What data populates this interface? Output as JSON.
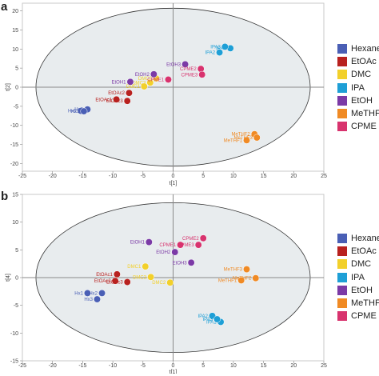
{
  "legend": [
    "Hexane",
    "EtOAc",
    "DMC",
    "IPA",
    "EtOH",
    "MeTHF",
    "CPME"
  ],
  "colors": {
    "Hexane": "#4a5fb5",
    "EtOAc": "#b8211f",
    "DMC": "#f2d02b",
    "IPA": "#1e9fd6",
    "EtOH": "#7b3aa6",
    "MeTHF": "#f08a24",
    "CPME": "#d8336e"
  },
  "chart_data": [
    {
      "type": "scatter",
      "panel": "a",
      "xlabel": "t[1]",
      "ylabel": "t[2]",
      "xlim": [
        -25,
        25
      ],
      "ylim": [
        -22,
        22
      ],
      "xticks": [
        -25,
        -20,
        -15,
        -10,
        -5,
        0,
        5,
        10,
        15,
        20,
        25
      ],
      "yticks": [
        -20,
        -15,
        -10,
        -5,
        0,
        5,
        10,
        15,
        20
      ],
      "points": [
        {
          "label": "Hx1",
          "group": "Hexane",
          "x": -15.3,
          "y": -6.2
        },
        {
          "label": "Hx2",
          "group": "Hexane",
          "x": -14.2,
          "y": -5.8
        },
        {
          "label": "Hx3",
          "group": "Hexane",
          "x": -14.8,
          "y": -6.3
        },
        {
          "label": "EtOAc1",
          "group": "EtOAc",
          "x": -9.4,
          "y": -3.2
        },
        {
          "label": "EtOAc2",
          "group": "EtOAc",
          "x": -7.3,
          "y": -1.5
        },
        {
          "label": "EtOAc3",
          "group": "EtOAc",
          "x": -7.6,
          "y": -3.6
        },
        {
          "label": "DMC1",
          "group": "DMC",
          "x": -4.8,
          "y": 0.2
        },
        {
          "label": "DMC2",
          "group": "DMC",
          "x": -2.8,
          "y": 2.3
        },
        {
          "label": "DMC3",
          "group": "DMC",
          "x": -3.8,
          "y": 1.2
        },
        {
          "label": "IPA1",
          "group": "IPA",
          "x": 9.5,
          "y": 10.2
        },
        {
          "label": "IPA2",
          "group": "IPA",
          "x": 7.7,
          "y": 9.1
        },
        {
          "label": "IPA3",
          "group": "IPA",
          "x": 8.6,
          "y": 10.6
        },
        {
          "label": "EtOH1",
          "group": "EtOH",
          "x": -7.1,
          "y": 1.4
        },
        {
          "label": "EtOH2",
          "group": "EtOH",
          "x": -3.2,
          "y": 3.4
        },
        {
          "label": "EtOH3",
          "group": "EtOH",
          "x": 2.0,
          "y": 6.0
        },
        {
          "label": "MeTHF1",
          "group": "MeTHF",
          "x": 12.2,
          "y": -13.9
        },
        {
          "label": "MeTHF2",
          "group": "MeTHF",
          "x": 13.5,
          "y": -12.3
        },
        {
          "label": "MeTHF3",
          "group": "MeTHF",
          "x": 13.9,
          "y": -13.2
        },
        {
          "label": "CPME1",
          "group": "CPME",
          "x": -0.8,
          "y": 2.0
        },
        {
          "label": "CPME2",
          "group": "CPME",
          "x": 4.6,
          "y": 4.8
        },
        {
          "label": "CPME3",
          "group": "CPME",
          "x": 4.8,
          "y": 3.3
        }
      ]
    },
    {
      "type": "scatter",
      "panel": "b",
      "xlabel": "t[1]",
      "ylabel": "t[4]",
      "xlim": [
        -25,
        25
      ],
      "ylim": [
        -15,
        15
      ],
      "xticks": [
        -25,
        -20,
        -15,
        -10,
        -5,
        0,
        5,
        10,
        15,
        20,
        25
      ],
      "yticks": [
        -15,
        -10,
        -5,
        0,
        5,
        10,
        15
      ],
      "points": [
        {
          "label": "Hx1",
          "group": "Hexane",
          "x": -14.2,
          "y": -2.8
        },
        {
          "label": "Hx2",
          "group": "Hexane",
          "x": -11.8,
          "y": -2.8
        },
        {
          "label": "Hx3",
          "group": "Hexane",
          "x": -12.6,
          "y": -3.9
        },
        {
          "label": "EtOAc1",
          "group": "EtOAc",
          "x": -9.3,
          "y": 0.6
        },
        {
          "label": "EtOAc2",
          "group": "EtOAc",
          "x": -9.6,
          "y": -0.6
        },
        {
          "label": "EtOAc3",
          "group": "EtOAc",
          "x": -7.6,
          "y": -0.8
        },
        {
          "label": "DMC1",
          "group": "DMC",
          "x": -4.6,
          "y": 2.0
        },
        {
          "label": "DMC2",
          "group": "DMC",
          "x": -0.5,
          "y": -0.9
        },
        {
          "label": "DMC3",
          "group": "DMC",
          "x": -3.7,
          "y": 0.1
        },
        {
          "label": "IPA1",
          "group": "IPA",
          "x": 7.9,
          "y": -8.0
        },
        {
          "label": "IPA2",
          "group": "IPA",
          "x": 6.5,
          "y": -6.9
        },
        {
          "label": "IPA3",
          "group": "IPA",
          "x": 7.3,
          "y": -7.5
        },
        {
          "label": "EtOH1",
          "group": "EtOH",
          "x": -4.0,
          "y": 6.4
        },
        {
          "label": "EtOH2",
          "group": "EtOH",
          "x": 0.3,
          "y": 4.6
        },
        {
          "label": "EtOH3",
          "group": "EtOH",
          "x": 3.0,
          "y": 2.7
        },
        {
          "label": "MeTHF1",
          "group": "MeTHF",
          "x": 11.3,
          "y": -0.5
        },
        {
          "label": "MeTHF2",
          "group": "MeTHF",
          "x": 13.7,
          "y": -0.1
        },
        {
          "label": "MeTHF3",
          "group": "MeTHF",
          "x": 12.2,
          "y": 1.5
        },
        {
          "label": "CPME1",
          "group": "CPME",
          "x": 1.2,
          "y": 5.9
        },
        {
          "label": "CPME2",
          "group": "CPME",
          "x": 5.0,
          "y": 7.1
        },
        {
          "label": "CPME3",
          "group": "CPME",
          "x": 4.2,
          "y": 5.9
        }
      ]
    }
  ]
}
